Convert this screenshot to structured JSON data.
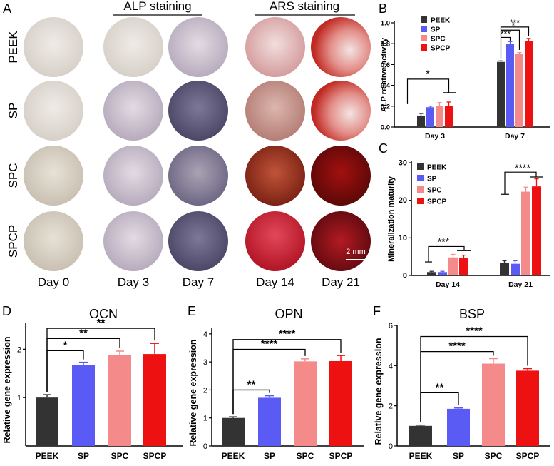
{
  "panel_letters": {
    "a": "A",
    "b": "B",
    "c": "C",
    "d": "D",
    "e": "E",
    "f": "F"
  },
  "stain_headers": {
    "alp": "ALP staining",
    "ars": "ARS staining"
  },
  "row_labels": [
    "PEEK",
    "SP",
    "SPC",
    "SPCP"
  ],
  "day_labels": [
    "Day 0",
    "Day 3",
    "Day 7",
    "Day 14",
    "Day 21"
  ],
  "scale_bar": "2 mm",
  "colors": {
    "PEEK": "#333333",
    "SP": "#5a5af5",
    "SPC": "#f48a8a",
    "SPCP": "#ee1111"
  },
  "chart_data": [
    {
      "id": "B",
      "type": "bar",
      "title": "",
      "xlabel": "",
      "ylabel": "ALP relative activity",
      "groups": [
        "Day 3",
        "Day 7"
      ],
      "series": [
        {
          "name": "PEEK",
          "values": [
            0.11,
            0.625
          ],
          "errors": [
            0.02,
            0.01
          ]
        },
        {
          "name": "SP",
          "values": [
            0.19,
            0.795
          ],
          "errors": [
            0.01,
            0.025
          ]
        },
        {
          "name": "SPC",
          "values": [
            0.205,
            0.705
          ],
          "errors": [
            0.03,
            0.01
          ]
        },
        {
          "name": "SPCP",
          "values": [
            0.205,
            0.825
          ],
          "errors": [
            0.035,
            0.025
          ]
        }
      ],
      "ylim": [
        0,
        1.0
      ],
      "yticks": [
        "0.0",
        "0.2",
        "0.4",
        "0.6",
        "0.8",
        "1.0"
      ],
      "legend": [
        "PEEK",
        "SP",
        "SPC",
        "SPCP"
      ],
      "significance": [
        "*",
        "***",
        "*",
        "***"
      ]
    },
    {
      "id": "C",
      "type": "bar",
      "title": "",
      "xlabel": "",
      "ylabel": "Mineralization maturity",
      "groups": [
        "Day 14",
        "Day 21"
      ],
      "series": [
        {
          "name": "PEEK",
          "values": [
            0.9,
            3.3
          ],
          "errors": [
            0.2,
            0.6
          ]
        },
        {
          "name": "SP",
          "values": [
            0.9,
            3.1
          ],
          "errors": [
            0.2,
            0.8
          ]
        },
        {
          "name": "SPC",
          "values": [
            4.8,
            22.3
          ],
          "errors": [
            0.8,
            1.2
          ]
        },
        {
          "name": "SPCP",
          "values": [
            4.7,
            23.7
          ],
          "errors": [
            0.7,
            2.0
          ]
        }
      ],
      "ylim": [
        0,
        30
      ],
      "yticks": [
        "0",
        "10",
        "20",
        "30"
      ],
      "legend": [
        "PEEK",
        "SP",
        "SPC",
        "SPCP"
      ],
      "significance": [
        "***",
        "****"
      ]
    },
    {
      "id": "D",
      "type": "bar",
      "title": "OCN",
      "xlabel": "",
      "ylabel": "Relative gene expression",
      "categories": [
        "PEEK",
        "SP",
        "SPC",
        "SPCP"
      ],
      "values": [
        1.0,
        1.67,
        1.88,
        1.9
      ],
      "errors": [
        0.06,
        0.06,
        0.08,
        0.22
      ],
      "ylim": [
        0,
        2.55
      ],
      "yticks": [
        "1",
        "2"
      ],
      "significance": [
        "*",
        "**",
        "**"
      ]
    },
    {
      "id": "E",
      "type": "bar",
      "title": "OPN",
      "xlabel": "",
      "ylabel": "Relative gene expression",
      "categories": [
        "PEEK",
        "SP",
        "SPC",
        "SPCP"
      ],
      "values": [
        1.0,
        1.72,
        3.02,
        3.03
      ],
      "errors": [
        0.04,
        0.07,
        0.09,
        0.2
      ],
      "ylim": [
        0,
        4.2
      ],
      "yticks": [
        "0",
        "1",
        "2",
        "3",
        "4"
      ],
      "significance": [
        "**",
        "****",
        "****"
      ]
    },
    {
      "id": "F",
      "type": "bar",
      "title": "BSP",
      "xlabel": "",
      "ylabel": "Relative gene expression",
      "categories": [
        "PEEK",
        "SP",
        "SPC",
        "SPCP"
      ],
      "values": [
        1.0,
        1.85,
        4.1,
        3.75
      ],
      "errors": [
        0.04,
        0.04,
        0.25,
        0.1
      ],
      "ylim": [
        0,
        6.0
      ],
      "yticks": [
        "0",
        "2",
        "4",
        "6"
      ],
      "significance": [
        "**",
        "****",
        "****"
      ]
    }
  ]
}
